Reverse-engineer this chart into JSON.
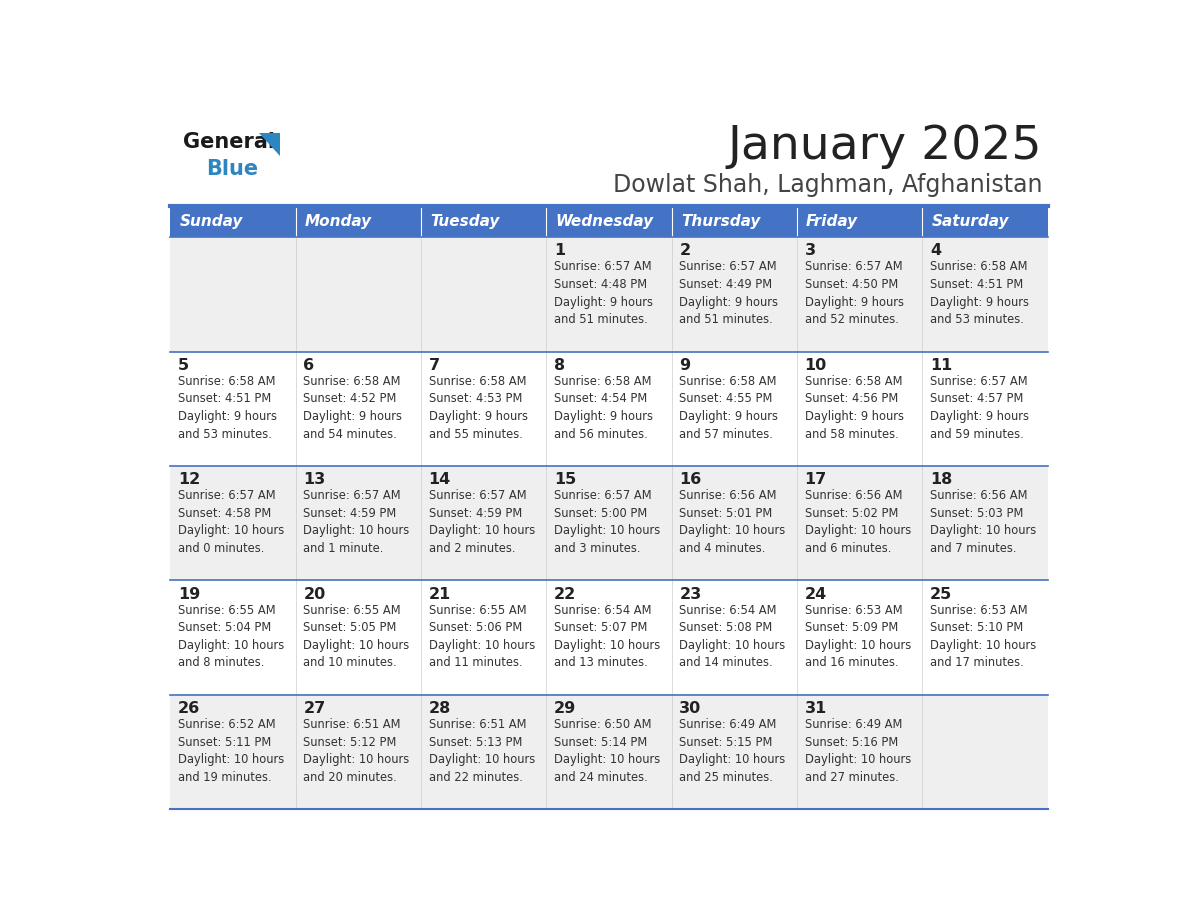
{
  "title": "January 2025",
  "subtitle": "Dowlat Shah, Laghman, Afghanistan",
  "days_of_week": [
    "Sunday",
    "Monday",
    "Tuesday",
    "Wednesday",
    "Thursday",
    "Friday",
    "Saturday"
  ],
  "header_bg": "#4472C4",
  "header_text": "#FFFFFF",
  "row_bg_odd": "#EFEFEF",
  "row_bg_even": "#FFFFFF",
  "cell_border_color": "#4472C4",
  "title_color": "#222222",
  "subtitle_color": "#444444",
  "day_number_color": "#222222",
  "text_color": "#333333",
  "logo_black": "#1a1a1a",
  "logo_blue": "#2E86C1",
  "logo_triangle": "#2E86C1",
  "calendar": [
    [
      {
        "day": "",
        "sunrise": "",
        "sunset": "",
        "daylight_h": "",
        "daylight_m": ""
      },
      {
        "day": "",
        "sunrise": "",
        "sunset": "",
        "daylight_h": "",
        "daylight_m": ""
      },
      {
        "day": "",
        "sunrise": "",
        "sunset": "",
        "daylight_h": "",
        "daylight_m": ""
      },
      {
        "day": "1",
        "sunrise": "6:57 AM",
        "sunset": "4:48 PM",
        "daylight_h": "9",
        "daylight_m": "51"
      },
      {
        "day": "2",
        "sunrise": "6:57 AM",
        "sunset": "4:49 PM",
        "daylight_h": "9",
        "daylight_m": "51"
      },
      {
        "day": "3",
        "sunrise": "6:57 AM",
        "sunset": "4:50 PM",
        "daylight_h": "9",
        "daylight_m": "52"
      },
      {
        "day": "4",
        "sunrise": "6:58 AM",
        "sunset": "4:51 PM",
        "daylight_h": "9",
        "daylight_m": "53"
      }
    ],
    [
      {
        "day": "5",
        "sunrise": "6:58 AM",
        "sunset": "4:51 PM",
        "daylight_h": "9",
        "daylight_m": "53"
      },
      {
        "day": "6",
        "sunrise": "6:58 AM",
        "sunset": "4:52 PM",
        "daylight_h": "9",
        "daylight_m": "54"
      },
      {
        "day": "7",
        "sunrise": "6:58 AM",
        "sunset": "4:53 PM",
        "daylight_h": "9",
        "daylight_m": "55"
      },
      {
        "day": "8",
        "sunrise": "6:58 AM",
        "sunset": "4:54 PM",
        "daylight_h": "9",
        "daylight_m": "56"
      },
      {
        "day": "9",
        "sunrise": "6:58 AM",
        "sunset": "4:55 PM",
        "daylight_h": "9",
        "daylight_m": "57"
      },
      {
        "day": "10",
        "sunrise": "6:58 AM",
        "sunset": "4:56 PM",
        "daylight_h": "9",
        "daylight_m": "58"
      },
      {
        "day": "11",
        "sunrise": "6:57 AM",
        "sunset": "4:57 PM",
        "daylight_h": "9",
        "daylight_m": "59"
      }
    ],
    [
      {
        "day": "12",
        "sunrise": "6:57 AM",
        "sunset": "4:58 PM",
        "daylight_h": "10",
        "daylight_m": "0"
      },
      {
        "day": "13",
        "sunrise": "6:57 AM",
        "sunset": "4:59 PM",
        "daylight_h": "10",
        "daylight_m": "1"
      },
      {
        "day": "14",
        "sunrise": "6:57 AM",
        "sunset": "4:59 PM",
        "daylight_h": "10",
        "daylight_m": "2"
      },
      {
        "day": "15",
        "sunrise": "6:57 AM",
        "sunset": "5:00 PM",
        "daylight_h": "10",
        "daylight_m": "3"
      },
      {
        "day": "16",
        "sunrise": "6:56 AM",
        "sunset": "5:01 PM",
        "daylight_h": "10",
        "daylight_m": "4"
      },
      {
        "day": "17",
        "sunrise": "6:56 AM",
        "sunset": "5:02 PM",
        "daylight_h": "10",
        "daylight_m": "6"
      },
      {
        "day": "18",
        "sunrise": "6:56 AM",
        "sunset": "5:03 PM",
        "daylight_h": "10",
        "daylight_m": "7"
      }
    ],
    [
      {
        "day": "19",
        "sunrise": "6:55 AM",
        "sunset": "5:04 PM",
        "daylight_h": "10",
        "daylight_m": "8"
      },
      {
        "day": "20",
        "sunrise": "6:55 AM",
        "sunset": "5:05 PM",
        "daylight_h": "10",
        "daylight_m": "10"
      },
      {
        "day": "21",
        "sunrise": "6:55 AM",
        "sunset": "5:06 PM",
        "daylight_h": "10",
        "daylight_m": "11"
      },
      {
        "day": "22",
        "sunrise": "6:54 AM",
        "sunset": "5:07 PM",
        "daylight_h": "10",
        "daylight_m": "13"
      },
      {
        "day": "23",
        "sunrise": "6:54 AM",
        "sunset": "5:08 PM",
        "daylight_h": "10",
        "daylight_m": "14"
      },
      {
        "day": "24",
        "sunrise": "6:53 AM",
        "sunset": "5:09 PM",
        "daylight_h": "10",
        "daylight_m": "16"
      },
      {
        "day": "25",
        "sunrise": "6:53 AM",
        "sunset": "5:10 PM",
        "daylight_h": "10",
        "daylight_m": "17"
      }
    ],
    [
      {
        "day": "26",
        "sunrise": "6:52 AM",
        "sunset": "5:11 PM",
        "daylight_h": "10",
        "daylight_m": "19"
      },
      {
        "day": "27",
        "sunrise": "6:51 AM",
        "sunset": "5:12 PM",
        "daylight_h": "10",
        "daylight_m": "20"
      },
      {
        "day": "28",
        "sunrise": "6:51 AM",
        "sunset": "5:13 PM",
        "daylight_h": "10",
        "daylight_m": "22"
      },
      {
        "day": "29",
        "sunrise": "6:50 AM",
        "sunset": "5:14 PM",
        "daylight_h": "10",
        "daylight_m": "24"
      },
      {
        "day": "30",
        "sunrise": "6:49 AM",
        "sunset": "5:15 PM",
        "daylight_h": "10",
        "daylight_m": "25"
      },
      {
        "day": "31",
        "sunrise": "6:49 AM",
        "sunset": "5:16 PM",
        "daylight_h": "10",
        "daylight_m": "27"
      },
      {
        "day": "",
        "sunrise": "",
        "sunset": "",
        "daylight_h": "",
        "daylight_m": ""
      }
    ]
  ]
}
